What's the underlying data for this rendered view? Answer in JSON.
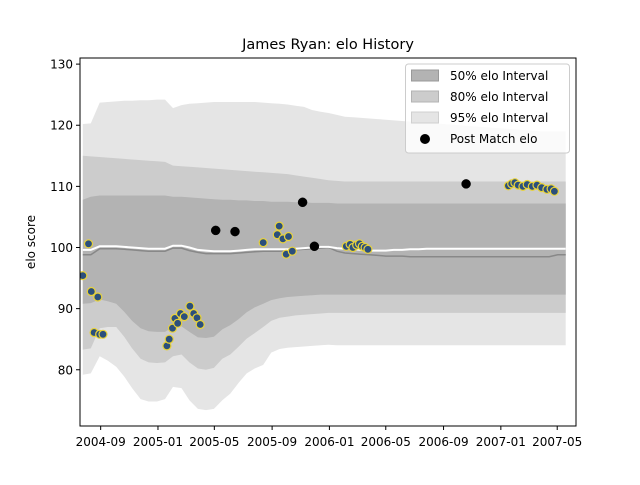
{
  "chart_data": {
    "type": "area",
    "title": "James Ryan: elo History",
    "xlabel": "",
    "ylabel": "elo score",
    "xlim": [
      "2004-07-19",
      "2007-06-10"
    ],
    "ylim": [
      70.8,
      131.0
    ],
    "yticks": [
      80,
      90,
      100,
      110,
      120,
      130
    ],
    "xticks": [
      {
        "date": "2004-09-01",
        "label": "2004-09"
      },
      {
        "date": "2005-01-01",
        "label": "2005-01"
      },
      {
        "date": "2005-05-01",
        "label": "2005-05"
      },
      {
        "date": "2005-09-01",
        "label": "2005-09"
      },
      {
        "date": "2006-01-01",
        "label": "2006-01"
      },
      {
        "date": "2006-05-01",
        "label": "2006-05"
      },
      {
        "date": "2006-09-01",
        "label": "2006-09"
      },
      {
        "date": "2007-01-01",
        "label": "2007-01"
      },
      {
        "date": "2007-05-01",
        "label": "2007-05"
      }
    ],
    "grid": false,
    "legend_position": "top-right",
    "legend": [
      {
        "label": "50% elo Interval",
        "kind": "patch",
        "color": "#b3b3b3"
      },
      {
        "label": "80% elo Interval",
        "kind": "patch",
        "color": "#cccccc"
      },
      {
        "label": "95% elo Interval",
        "kind": "patch",
        "color": "#e5e5e5"
      },
      {
        "label": "Post Match elo",
        "kind": "marker",
        "color": "#000000"
      }
    ],
    "colors": {
      "band95": "#e5e5e5",
      "band80": "#cccccc",
      "band50": "#b3b3b3",
      "mean_line": "#ffffff",
      "median_line": "#888888",
      "marker_current": "#2b4f7c",
      "marker_current_edge": "#e8d23a",
      "marker_other": "#000000"
    },
    "dates": [
      "2004-07-25",
      "2004-08-11",
      "2004-08-30",
      "2004-09-16",
      "2004-10-04",
      "2004-10-21",
      "2004-11-07",
      "2004-11-25",
      "2004-12-12",
      "2004-12-30",
      "2005-01-16",
      "2005-02-02",
      "2005-02-20",
      "2005-03-09",
      "2005-03-27",
      "2005-04-13",
      "2005-04-30",
      "2005-05-18",
      "2005-06-04",
      "2005-06-22",
      "2005-07-09",
      "2005-07-26",
      "2005-08-13",
      "2005-08-30",
      "2005-09-17",
      "2005-10-04",
      "2005-10-21",
      "2005-11-08",
      "2005-11-25",
      "2005-12-13",
      "2005-12-30",
      "2006-01-17",
      "2006-02-03",
      "2006-02-20",
      "2006-03-10",
      "2006-03-27",
      "2006-04-14",
      "2006-05-01",
      "2006-05-18",
      "2006-06-05",
      "2006-06-22",
      "2006-07-10",
      "2006-07-27",
      "2006-08-14",
      "2006-08-31",
      "2006-09-17",
      "2006-10-05",
      "2006-10-22",
      "2006-11-09",
      "2006-11-26",
      "2006-12-14",
      "2006-12-31",
      "2007-01-17",
      "2007-02-04",
      "2007-02-21",
      "2007-03-11",
      "2007-03-28",
      "2007-04-14",
      "2007-05-02",
      "2007-05-19"
    ],
    "band95_low": [
      79.2,
      79.4,
      82.2,
      81.5,
      80.5,
      78.9,
      77.0,
      75.2,
      74.8,
      74.8,
      75.2,
      77.2,
      77.0,
      75.0,
      73.6,
      73.4,
      73.6,
      75.0,
      76.1,
      77.9,
      79.4,
      80.2,
      80.8,
      82.8,
      83.4,
      83.6,
      83.7,
      83.8,
      83.9,
      84.0,
      84.1,
      84.0,
      84.0,
      84.0,
      84.0,
      84.0,
      84.0,
      84.0,
      84.0,
      84.0,
      84.0,
      84.0,
      84.0,
      84.0,
      84.0,
      84.0,
      84.0,
      84.0,
      84.0,
      84.0,
      84.0,
      84.0,
      84.0,
      84.0,
      84.0,
      84.0,
      84.0,
      84.0,
      84.0,
      84.0
    ],
    "band95_high": [
      120.2,
      120.3,
      123.7,
      123.8,
      123.9,
      124.0,
      124.0,
      124.1,
      124.1,
      124.2,
      124.2,
      122.8,
      123.3,
      123.5,
      123.6,
      123.7,
      123.8,
      123.8,
      123.8,
      123.8,
      123.8,
      123.8,
      123.7,
      123.6,
      123.5,
      123.4,
      123.2,
      123.0,
      122.5,
      122.2,
      122.0,
      121.7,
      121.4,
      121.3,
      121.2,
      121.1,
      121.0,
      120.9,
      120.8,
      120.7,
      120.6,
      120.5,
      120.4,
      120.3,
      120.2,
      120.1,
      120.0,
      119.9,
      119.8,
      119.7,
      119.6,
      119.5,
      119.4,
      119.3,
      119.2,
      119.1,
      119.0,
      119.0,
      119.0,
      119.0
    ],
    "band80_low": [
      83.3,
      83.5,
      86.8,
      87.0,
      87.0,
      85.4,
      83.5,
      81.8,
      81.2,
      81.1,
      81.2,
      82.2,
      82.5,
      81.2,
      80.2,
      80.0,
      80.3,
      81.8,
      82.5,
      83.8,
      85.1,
      86.0,
      87.0,
      88.0,
      88.5,
      88.7,
      88.9,
      89.0,
      89.1,
      89.2,
      89.3,
      89.3,
      89.3,
      89.3,
      89.3,
      89.3,
      89.3,
      89.3,
      89.3,
      89.3,
      89.3,
      89.3,
      89.3,
      89.3,
      89.3,
      89.3,
      89.3,
      89.3,
      89.3,
      89.3,
      89.3,
      89.3,
      89.3,
      89.3,
      89.3,
      89.3,
      89.3,
      89.3,
      89.3,
      89.3
    ],
    "band80_high": [
      115.0,
      114.9,
      114.8,
      114.7,
      114.6,
      114.5,
      114.4,
      114.3,
      114.2,
      114.1,
      114.0,
      113.4,
      113.3,
      113.2,
      113.1,
      113.0,
      112.9,
      112.8,
      112.7,
      112.6,
      112.5,
      112.4,
      112.3,
      112.2,
      112.1,
      112.0,
      111.8,
      111.6,
      111.4,
      111.2,
      111.0,
      110.9,
      110.8,
      110.8,
      110.8,
      110.8,
      110.8,
      110.8,
      110.8,
      110.8,
      110.8,
      110.8,
      110.8,
      110.8,
      110.8,
      110.8,
      110.8,
      110.8,
      110.8,
      110.8,
      110.8,
      110.8,
      110.8,
      110.8,
      110.8,
      110.8,
      110.8,
      110.8,
      110.8,
      110.8
    ],
    "band50_low": [
      90.8,
      90.9,
      91.5,
      91.2,
      90.8,
      89.5,
      88.0,
      86.8,
      86.3,
      86.2,
      86.2,
      87.0,
      87.1,
      86.2,
      85.3,
      85.2,
      85.4,
      86.6,
      87.3,
      88.3,
      89.4,
      90.2,
      90.8,
      91.4,
      91.7,
      91.9,
      92.0,
      92.1,
      92.2,
      92.3,
      92.3,
      92.3,
      92.3,
      92.3,
      92.3,
      92.3,
      92.3,
      92.3,
      92.3,
      92.3,
      92.3,
      92.3,
      92.3,
      92.3,
      92.3,
      92.3,
      92.3,
      92.3,
      92.3,
      92.3,
      92.3,
      92.3,
      92.3,
      92.3,
      92.3,
      92.3,
      92.3,
      92.3,
      92.3,
      92.3
    ],
    "band50_high": [
      107.8,
      108.3,
      108.5,
      108.5,
      108.5,
      108.5,
      108.5,
      108.5,
      108.5,
      108.5,
      108.5,
      108.3,
      108.3,
      108.2,
      108.1,
      108.0,
      107.9,
      107.8,
      107.8,
      107.7,
      107.7,
      107.6,
      107.6,
      107.5,
      107.5,
      107.5,
      107.4,
      107.4,
      107.3,
      107.3,
      107.3,
      107.2,
      107.2,
      107.2,
      107.2,
      107.2,
      107.2,
      107.2,
      107.2,
      107.2,
      107.2,
      107.2,
      107.2,
      107.2,
      107.2,
      107.2,
      107.2,
      107.2,
      107.2,
      107.2,
      107.2,
      107.2,
      107.2,
      107.2,
      107.2,
      107.2,
      107.2,
      107.2,
      107.2,
      107.2
    ],
    "mean_line": [
      99.6,
      99.6,
      100.2,
      100.2,
      100.2,
      100.1,
      100.0,
      99.9,
      99.8,
      99.8,
      99.8,
      100.3,
      100.3,
      100.0,
      99.6,
      99.5,
      99.4,
      99.4,
      99.4,
      99.5,
      99.6,
      99.7,
      99.7,
      99.7,
      99.7,
      99.7,
      99.8,
      99.9,
      100.0,
      100.1,
      100.1,
      99.9,
      99.8,
      99.7,
      99.6,
      99.5,
      99.5,
      99.5,
      99.6,
      99.6,
      99.7,
      99.7,
      99.8,
      99.8,
      99.8,
      99.8,
      99.8,
      99.8,
      99.8,
      99.8,
      99.8,
      99.8,
      99.8,
      99.8,
      99.8,
      99.8,
      99.8,
      99.8,
      99.8,
      99.8
    ],
    "median_line": [
      98.8,
      98.8,
      99.8,
      99.8,
      99.8,
      99.7,
      99.6,
      99.5,
      99.4,
      99.4,
      99.4,
      99.9,
      99.9,
      99.5,
      99.2,
      99.0,
      99.0,
      99.0,
      99.0,
      99.1,
      99.2,
      99.3,
      99.4,
      99.4,
      99.4,
      99.5,
      99.6,
      99.7,
      99.8,
      99.9,
      100.0,
      99.4,
      99.1,
      99.0,
      98.9,
      98.8,
      98.7,
      98.6,
      98.6,
      98.6,
      98.5,
      98.5,
      98.5,
      98.5,
      98.5,
      98.5,
      98.5,
      98.5,
      98.5,
      98.5,
      98.5,
      98.5,
      98.5,
      98.5,
      98.5,
      98.5,
      98.5,
      98.5,
      98.8,
      98.8
    ],
    "points": [
      {
        "date": "2004-07-25",
        "elo": 95.4,
        "current": true
      },
      {
        "date": "2004-08-06",
        "elo": 100.6,
        "current": true
      },
      {
        "date": "2004-08-12",
        "elo": 92.8,
        "current": true
      },
      {
        "date": "2004-08-18",
        "elo": 86.1,
        "current": true
      },
      {
        "date": "2004-08-26",
        "elo": 91.9,
        "current": true
      },
      {
        "date": "2004-08-30",
        "elo": 85.8,
        "current": true
      },
      {
        "date": "2004-09-06",
        "elo": 85.8,
        "current": true
      },
      {
        "date": "2005-01-20",
        "elo": 83.9,
        "current": true
      },
      {
        "date": "2005-01-25",
        "elo": 85.0,
        "current": true
      },
      {
        "date": "2005-02-01",
        "elo": 86.8,
        "current": true
      },
      {
        "date": "2005-02-06",
        "elo": 88.4,
        "current": true
      },
      {
        "date": "2005-02-12",
        "elo": 87.6,
        "current": true
      },
      {
        "date": "2005-02-18",
        "elo": 89.2,
        "current": true
      },
      {
        "date": "2005-02-26",
        "elo": 88.7,
        "current": true
      },
      {
        "date": "2005-03-10",
        "elo": 90.4,
        "current": true
      },
      {
        "date": "2005-03-18",
        "elo": 89.2,
        "current": true
      },
      {
        "date": "2005-03-25",
        "elo": 88.5,
        "current": true
      },
      {
        "date": "2005-04-01",
        "elo": 87.4,
        "current": false,
        "_fix": true
      },
      {
        "date": "2005-05-04",
        "elo": 102.8,
        "current": false
      },
      {
        "date": "2005-06-14",
        "elo": 102.6,
        "current": false
      },
      {
        "date": "2005-08-13",
        "elo": 100.8,
        "current": true
      },
      {
        "date": "2005-09-12",
        "elo": 102.1,
        "current": true
      },
      {
        "date": "2005-09-16",
        "elo": 103.5,
        "current": true
      },
      {
        "date": "2005-09-24",
        "elo": 101.4,
        "current": true
      },
      {
        "date": "2005-10-01",
        "elo": 98.9,
        "current": true
      },
      {
        "date": "2005-10-06",
        "elo": 101.8,
        "current": true
      },
      {
        "date": "2005-10-14",
        "elo": 99.4,
        "current": true
      },
      {
        "date": "2005-11-05",
        "elo": 107.4,
        "current": false
      },
      {
        "date": "2005-11-30",
        "elo": 100.2,
        "current": false
      },
      {
        "date": "2006-02-06",
        "elo": 100.2,
        "current": true
      },
      {
        "date": "2006-02-14",
        "elo": 100.5,
        "current": true
      },
      {
        "date": "2006-02-20",
        "elo": 100.0,
        "current": true
      },
      {
        "date": "2006-02-28",
        "elo": 100.4,
        "current": true
      },
      {
        "date": "2006-03-06",
        "elo": 100.6,
        "current": true
      },
      {
        "date": "2006-03-12",
        "elo": 100.2,
        "current": true
      },
      {
        "date": "2006-03-18",
        "elo": 100.0,
        "current": true
      },
      {
        "date": "2006-03-24",
        "elo": 99.7,
        "current": true
      },
      {
        "date": "2006-10-19",
        "elo": 110.4,
        "current": false
      },
      {
        "date": "2007-01-17",
        "elo": 110.1,
        "current": true
      },
      {
        "date": "2007-01-24",
        "elo": 110.4,
        "current": true
      },
      {
        "date": "2007-01-31",
        "elo": 110.6,
        "current": true
      },
      {
        "date": "2007-02-07",
        "elo": 110.2,
        "current": true
      },
      {
        "date": "2007-02-17",
        "elo": 110.0,
        "current": true
      },
      {
        "date": "2007-02-26",
        "elo": 110.3,
        "current": true
      },
      {
        "date": "2007-03-09",
        "elo": 110.0,
        "current": true
      },
      {
        "date": "2007-03-19",
        "elo": 110.2,
        "current": true
      },
      {
        "date": "2007-03-29",
        "elo": 109.8,
        "current": true
      },
      {
        "date": "2007-04-09",
        "elo": 109.5,
        "current": true
      },
      {
        "date": "2007-04-18",
        "elo": 109.6,
        "current": true
      },
      {
        "date": "2007-04-25",
        "elo": 109.2,
        "current": true
      }
    ]
  }
}
